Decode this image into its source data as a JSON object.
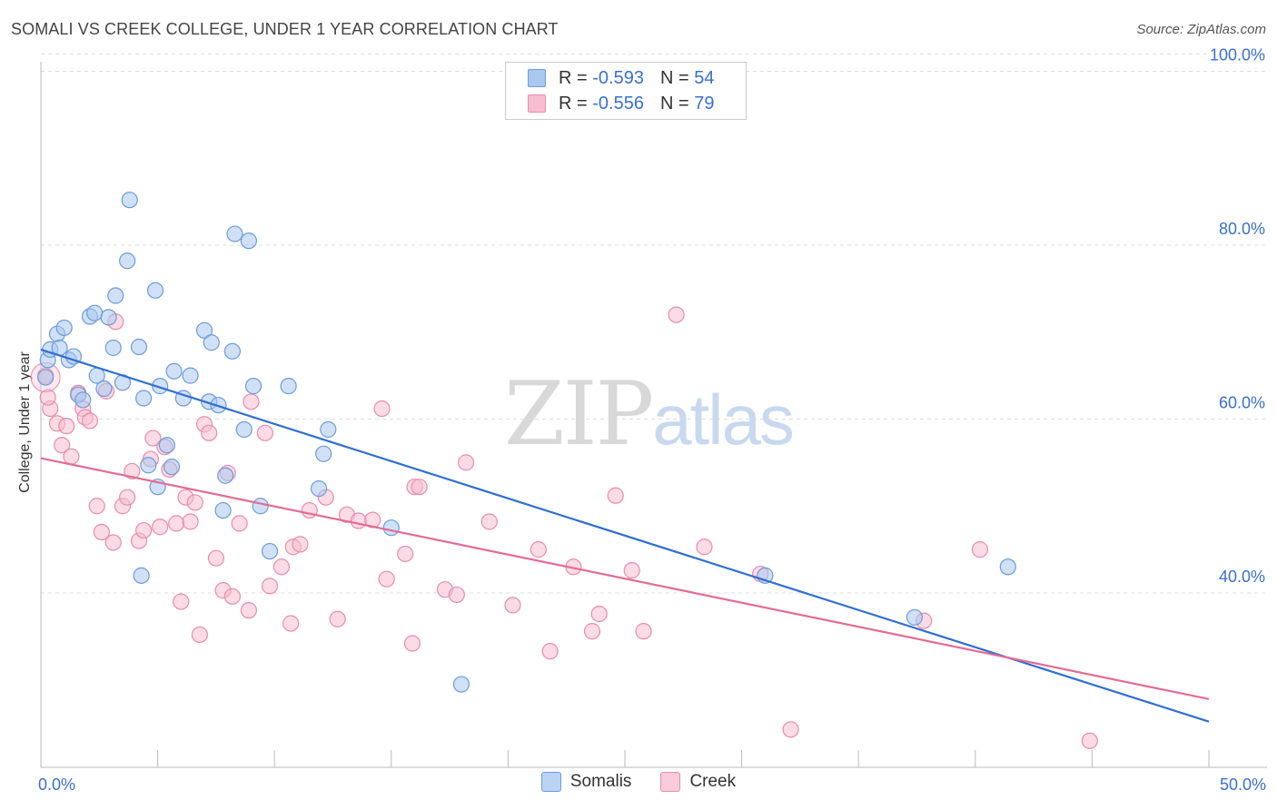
{
  "header": {
    "title": "SOMALI VS CREEK COLLEGE, UNDER 1 YEAR CORRELATION CHART",
    "source": "Source: ZipAtlas.com"
  },
  "watermark": {
    "zip": "ZIP",
    "atlas": "atlas"
  },
  "legend_top": [
    {
      "r_label": "R =",
      "r_value": "-0.593",
      "n_label": "N =",
      "n_value": "54"
    },
    {
      "r_label": "R =",
      "r_value": "-0.556",
      "n_label": "N =",
      "n_value": "79"
    }
  ],
  "legend_bottom": [
    {
      "label": "Somalis"
    },
    {
      "label": "Creek"
    }
  ],
  "colors": {
    "blue_fill": "#a9c8f0",
    "blue_stroke": "#6d9bd8",
    "blue_line": "#2f6fd0",
    "pink_fill": "#f7bdd0",
    "pink_stroke": "#e88daa",
    "pink_line": "#e36b96",
    "grid": "#dddddd",
    "tick_label": "#3a6fd0"
  },
  "chart_data": {
    "type": "scatter",
    "title": "SOMALI VS CREEK COLLEGE, UNDER 1 YEAR CORRELATION CHART",
    "xlabel": "",
    "ylabel": "College, Under 1 year",
    "xlim": [
      0,
      50
    ],
    "ylim": [
      21,
      104
    ],
    "x_tick_labels": [
      {
        "value": 0,
        "label": "0.0%"
      },
      {
        "value": 50,
        "label": "50.0%"
      }
    ],
    "y_tick_labels": [
      {
        "value": 100,
        "label": "100.0%"
      },
      {
        "value": 80,
        "label": "80.0%"
      },
      {
        "value": 60,
        "label": "60.0%"
      },
      {
        "value": 40,
        "label": "40.0%"
      }
    ],
    "series": [
      {
        "name": "Somalis",
        "color": "blue",
        "r": -0.593,
        "n": 54,
        "trend": {
          "x0": 0,
          "y0": 68.0,
          "x1": 50,
          "y1": 25.2
        },
        "points": [
          [
            0.2,
            64.8
          ],
          [
            0.3,
            66.8
          ],
          [
            0.4,
            68.0
          ],
          [
            0.7,
            69.8
          ],
          [
            0.8,
            68.2
          ],
          [
            1.0,
            70.5
          ],
          [
            1.2,
            66.8
          ],
          [
            1.4,
            67.2
          ],
          [
            1.6,
            62.8
          ],
          [
            1.8,
            62.2
          ],
          [
            2.1,
            71.8
          ],
          [
            2.3,
            72.2
          ],
          [
            2.4,
            65.0
          ],
          [
            2.7,
            63.5
          ],
          [
            2.9,
            71.7
          ],
          [
            3.1,
            68.2
          ],
          [
            3.2,
            74.2
          ],
          [
            3.5,
            64.2
          ],
          [
            3.7,
            78.2
          ],
          [
            3.8,
            85.2
          ],
          [
            4.2,
            68.3
          ],
          [
            4.3,
            42.0
          ],
          [
            4.4,
            62.4
          ],
          [
            4.6,
            54.7
          ],
          [
            4.9,
            74.8
          ],
          [
            5.0,
            52.2
          ],
          [
            5.1,
            63.8
          ],
          [
            5.4,
            57.0
          ],
          [
            5.6,
            54.5
          ],
          [
            5.7,
            65.5
          ],
          [
            6.1,
            62.4
          ],
          [
            6.4,
            65.0
          ],
          [
            7.0,
            70.2
          ],
          [
            7.3,
            68.8
          ],
          [
            7.2,
            62.0
          ],
          [
            7.6,
            61.6
          ],
          [
            7.9,
            53.5
          ],
          [
            7.8,
            49.5
          ],
          [
            8.2,
            67.8
          ],
          [
            8.3,
            81.3
          ],
          [
            8.7,
            58.8
          ],
          [
            8.9,
            80.5
          ],
          [
            9.1,
            63.8
          ],
          [
            9.4,
            50.0
          ],
          [
            9.8,
            44.8
          ],
          [
            10.6,
            63.8
          ],
          [
            11.9,
            52.0
          ],
          [
            12.1,
            56.0
          ],
          [
            12.3,
            58.8
          ],
          [
            15.0,
            47.5
          ],
          [
            18.0,
            29.5
          ],
          [
            31.0,
            42.0
          ],
          [
            37.4,
            37.2
          ],
          [
            41.4,
            43.0
          ]
        ]
      },
      {
        "name": "Creek",
        "color": "pink",
        "r": -0.556,
        "n": 79,
        "trend": {
          "x0": 0,
          "y0": 55.5,
          "x1": 50,
          "y1": 27.8
        },
        "points": [
          [
            0.2,
            65.0
          ],
          [
            0.4,
            61.2
          ],
          [
            0.7,
            59.5
          ],
          [
            0.9,
            57.0
          ],
          [
            1.1,
            59.2
          ],
          [
            1.3,
            55.7
          ],
          [
            1.6,
            63.0
          ],
          [
            1.8,
            61.2
          ],
          [
            1.9,
            60.2
          ],
          [
            2.1,
            59.8
          ],
          [
            2.4,
            50.0
          ],
          [
            2.6,
            47.0
          ],
          [
            2.8,
            63.2
          ],
          [
            3.1,
            45.8
          ],
          [
            3.2,
            71.2
          ],
          [
            3.5,
            50.0
          ],
          [
            3.7,
            51.0
          ],
          [
            3.9,
            54.0
          ],
          [
            4.2,
            46.0
          ],
          [
            4.4,
            47.2
          ],
          [
            4.7,
            55.4
          ],
          [
            4.8,
            57.8
          ],
          [
            5.1,
            47.6
          ],
          [
            5.3,
            56.8
          ],
          [
            5.5,
            54.2
          ],
          [
            5.8,
            48.0
          ],
          [
            6.0,
            39.0
          ],
          [
            6.2,
            51.0
          ],
          [
            6.4,
            48.2
          ],
          [
            6.6,
            50.4
          ],
          [
            6.8,
            35.2
          ],
          [
            7.0,
            59.4
          ],
          [
            7.2,
            58.4
          ],
          [
            7.5,
            44.0
          ],
          [
            7.8,
            40.3
          ],
          [
            8.0,
            53.8
          ],
          [
            8.2,
            39.6
          ],
          [
            8.5,
            48.0
          ],
          [
            8.9,
            38.0
          ],
          [
            9.0,
            62.0
          ],
          [
            9.6,
            58.4
          ],
          [
            9.8,
            40.8
          ],
          [
            10.3,
            43.0
          ],
          [
            10.7,
            36.5
          ],
          [
            10.8,
            45.3
          ],
          [
            11.1,
            45.6
          ],
          [
            11.5,
            49.5
          ],
          [
            12.2,
            51.0
          ],
          [
            12.7,
            37.0
          ],
          [
            13.1,
            49.0
          ],
          [
            13.6,
            48.3
          ],
          [
            14.2,
            48.4
          ],
          [
            14.6,
            61.2
          ],
          [
            14.8,
            41.6
          ],
          [
            15.6,
            44.5
          ],
          [
            15.9,
            34.2
          ],
          [
            16.0,
            52.2
          ],
          [
            16.2,
            52.2
          ],
          [
            17.3,
            40.4
          ],
          [
            17.8,
            39.8
          ],
          [
            18.2,
            55.0
          ],
          [
            19.2,
            48.2
          ],
          [
            20.2,
            38.6
          ],
          [
            21.3,
            45.0
          ],
          [
            21.8,
            33.3
          ],
          [
            22.8,
            43.0
          ],
          [
            23.6,
            35.6
          ],
          [
            23.9,
            37.6
          ],
          [
            24.6,
            51.2
          ],
          [
            25.3,
            42.6
          ],
          [
            25.8,
            35.6
          ],
          [
            27.2,
            72.0
          ],
          [
            28.4,
            45.3
          ],
          [
            30.8,
            42.2
          ],
          [
            32.1,
            24.3
          ],
          [
            37.8,
            36.8
          ],
          [
            40.2,
            45.0
          ],
          [
            44.9,
            23.0
          ],
          [
            0.3,
            62.5
          ]
        ]
      }
    ]
  }
}
